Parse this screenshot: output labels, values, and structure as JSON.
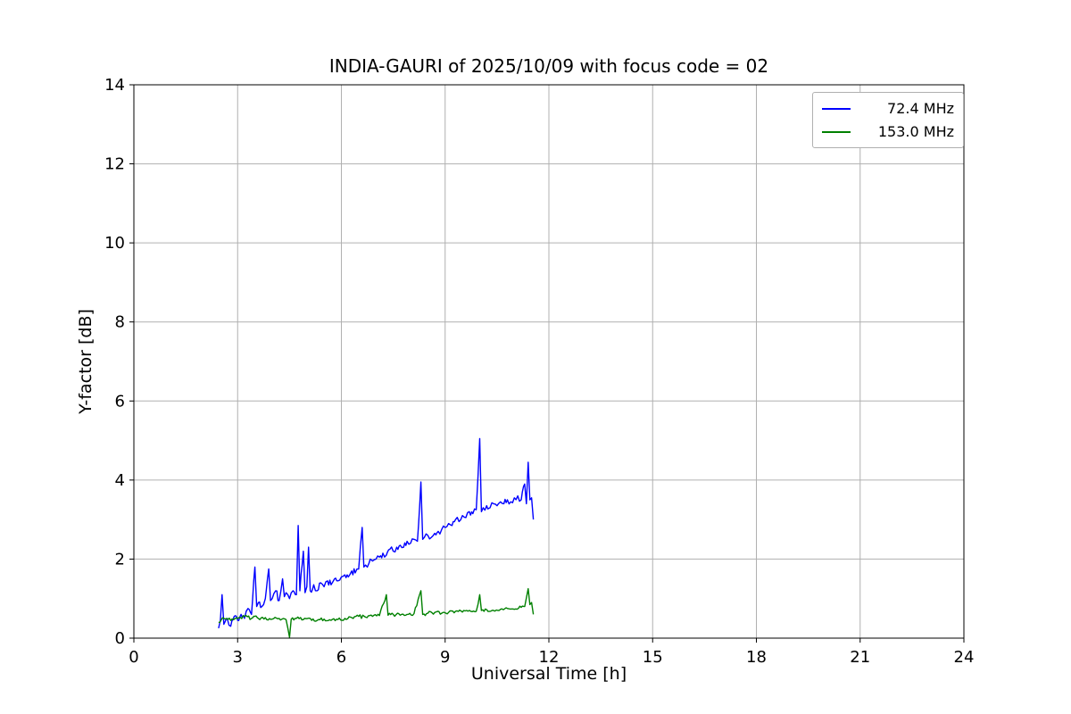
{
  "chart_data": {
    "type": "line",
    "title": "INDIA-GAURI of 2025/10/09 with focus code = 02",
    "xlabel": "Universal Time [h]",
    "ylabel": "Y-factor [dB]",
    "xlim": [
      0,
      24
    ],
    "ylim": [
      0,
      14
    ],
    "xticks": [
      0,
      3,
      6,
      9,
      12,
      15,
      18,
      21,
      24
    ],
    "yticks": [
      0,
      2,
      4,
      6,
      8,
      10,
      12,
      14
    ],
    "grid": true,
    "grid_color": "#b0b0b0",
    "legend_position": "upper right",
    "series": [
      {
        "name": "72.4 MHz",
        "color": "#0000ff",
        "noise": 0.09,
        "x": [
          2.45,
          2.5,
          2.55,
          2.6,
          2.7,
          2.8,
          2.9,
          3.0,
          3.1,
          3.2,
          3.3,
          3.4,
          3.5,
          3.55,
          3.6,
          3.7,
          3.8,
          3.9,
          3.95,
          4.0,
          4.1,
          4.2,
          4.3,
          4.35,
          4.4,
          4.5,
          4.6,
          4.7,
          4.75,
          4.8,
          4.9,
          4.95,
          5.0,
          5.05,
          5.1,
          5.2,
          5.3,
          5.4,
          5.5,
          5.6,
          5.7,
          5.8,
          5.9,
          6.0,
          6.1,
          6.2,
          6.3,
          6.4,
          6.5,
          6.6,
          6.65,
          6.7,
          6.8,
          6.9,
          7.0,
          7.1,
          7.2,
          7.3,
          7.4,
          7.5,
          7.6,
          7.7,
          7.8,
          7.9,
          8.0,
          8.1,
          8.2,
          8.3,
          8.35,
          8.4,
          8.5,
          8.6,
          8.7,
          8.8,
          8.9,
          9.0,
          9.1,
          9.2,
          9.3,
          9.4,
          9.5,
          9.6,
          9.7,
          9.8,
          9.9,
          10.0,
          10.05,
          10.1,
          10.2,
          10.3,
          10.4,
          10.5,
          10.6,
          10.7,
          10.8,
          10.9,
          11.0,
          11.1,
          11.2,
          11.3,
          11.35,
          11.4,
          11.45,
          11.5,
          11.55
        ],
        "y": [
          0.25,
          0.45,
          1.1,
          0.35,
          0.5,
          0.3,
          0.55,
          0.45,
          0.6,
          0.5,
          0.75,
          0.6,
          1.8,
          0.8,
          0.9,
          0.8,
          1.0,
          1.75,
          0.95,
          1.0,
          1.2,
          0.95,
          1.5,
          1.05,
          1.15,
          1.0,
          1.2,
          1.1,
          2.85,
          1.2,
          2.2,
          1.15,
          1.3,
          2.3,
          1.2,
          1.35,
          1.2,
          1.4,
          1.3,
          1.45,
          1.35,
          1.5,
          1.45,
          1.55,
          1.6,
          1.55,
          1.7,
          1.65,
          1.75,
          2.8,
          1.8,
          1.85,
          1.9,
          1.95,
          2.0,
          2.05,
          2.15,
          2.1,
          2.25,
          2.2,
          2.3,
          2.35,
          2.3,
          2.45,
          2.4,
          2.5,
          2.45,
          3.95,
          2.5,
          2.55,
          2.6,
          2.55,
          2.65,
          2.7,
          2.75,
          2.8,
          2.9,
          2.85,
          3.0,
          2.95,
          3.1,
          3.05,
          3.2,
          3.15,
          3.25,
          5.05,
          3.2,
          3.3,
          3.35,
          3.3,
          3.4,
          3.35,
          3.45,
          3.4,
          3.5,
          3.45,
          3.55,
          3.6,
          3.5,
          3.9,
          3.4,
          4.45,
          3.5,
          3.55,
          3.0
        ]
      },
      {
        "name": "153.0 MHz",
        "color": "#008000",
        "noise": 0.045,
        "x": [
          2.45,
          2.6,
          2.8,
          3.0,
          3.2,
          3.4,
          3.5,
          3.6,
          3.8,
          4.0,
          4.2,
          4.4,
          4.5,
          4.55,
          4.7,
          4.9,
          5.1,
          5.3,
          5.5,
          5.7,
          5.9,
          6.1,
          6.3,
          6.5,
          6.7,
          6.9,
          7.1,
          7.3,
          7.35,
          7.5,
          7.7,
          7.9,
          8.1,
          8.3,
          8.35,
          8.5,
          8.7,
          8.9,
          9.1,
          9.3,
          9.5,
          9.7,
          9.9,
          10.0,
          10.05,
          10.2,
          10.4,
          10.6,
          10.8,
          11.0,
          11.2,
          11.3,
          11.4,
          11.45,
          11.5,
          11.55
        ],
        "y": [
          0.4,
          0.5,
          0.45,
          0.5,
          0.55,
          0.5,
          0.55,
          0.5,
          0.52,
          0.48,
          0.5,
          0.47,
          0.02,
          0.48,
          0.5,
          0.47,
          0.5,
          0.45,
          0.48,
          0.45,
          0.47,
          0.5,
          0.52,
          0.55,
          0.53,
          0.55,
          0.57,
          1.1,
          0.58,
          0.6,
          0.58,
          0.6,
          0.62,
          1.2,
          0.6,
          0.63,
          0.65,
          0.63,
          0.65,
          0.68,
          0.66,
          0.7,
          0.68,
          1.1,
          0.7,
          0.72,
          0.7,
          0.73,
          0.75,
          0.73,
          0.78,
          0.8,
          1.25,
          0.85,
          0.9,
          0.6
        ]
      }
    ]
  }
}
